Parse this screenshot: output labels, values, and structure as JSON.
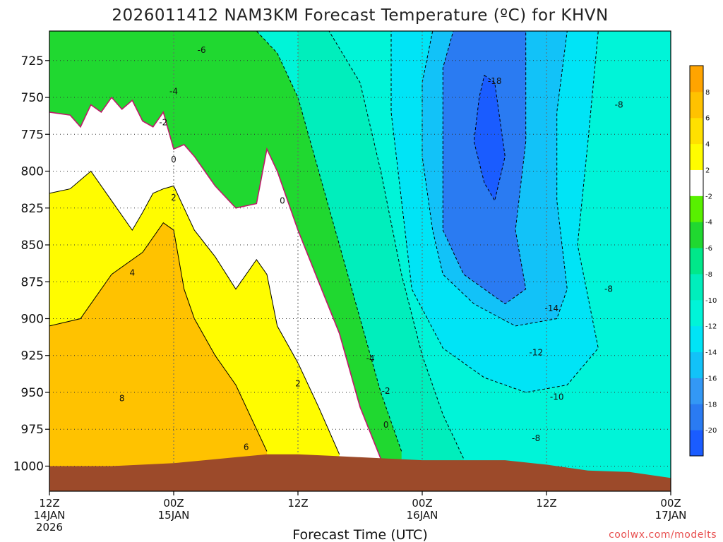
{
  "title": "2026011412 NAM3KM Forecast Temperature (ºC) for KHVN",
  "credit": "coolwx.com/modelts",
  "colors": {
    "ground": "#9c4a2a",
    "freezing_line": "#c0186a",
    "contour": "#000000"
  },
  "chart_data": {
    "type": "heatmap",
    "title": "2026011412 NAM3KM Forecast Temperature (ºC) for KHVN",
    "xlabel": "Forecast Time (UTC)",
    "ylabel": "",
    "x_range_hours": [
      0,
      60
    ],
    "y_range_hpa": [
      1017,
      705
    ],
    "y_ticks": [
      725,
      750,
      775,
      800,
      825,
      850,
      875,
      900,
      925,
      950,
      975,
      1000
    ],
    "x_ticks": [
      {
        "hour": 0,
        "time": "12Z",
        "date": "14JAN",
        "year": "2026"
      },
      {
        "hour": 12,
        "time": "00Z",
        "date": "15JAN",
        "year": ""
      },
      {
        "hour": 24,
        "time": "12Z",
        "date": "",
        "year": ""
      },
      {
        "hour": 36,
        "time": "00Z",
        "date": "16JAN",
        "year": ""
      },
      {
        "hour": 48,
        "time": "12Z",
        "date": "",
        "year": ""
      },
      {
        "hour": 60,
        "time": "00Z",
        "date": "17JAN",
        "year": ""
      }
    ],
    "grid": true,
    "contour_interval_c": 2,
    "colorbar": {
      "levels": [
        -22,
        -20,
        -18,
        -16,
        -14,
        -12,
        -10,
        -8,
        -6,
        -4,
        -2,
        2,
        4,
        6,
        8,
        10
      ],
      "labels": [
        -20,
        -18,
        -16,
        -14,
        -12,
        -10,
        -8,
        -6,
        -4,
        -2,
        2,
        4,
        6,
        8
      ],
      "colors": [
        "#1a5cff",
        "#2a7bf2",
        "#3398f5",
        "#12c2f8",
        "#00e4f6",
        "#00f4d8",
        "#00eebc",
        "#00e88a",
        "#20d830",
        "#58f000",
        "#ffffff",
        "#fffc00",
        "#ffe000",
        "#ffc200",
        "#ffa400"
      ]
    },
    "ground_surface_hpa": [
      {
        "hour": 0,
        "p": 1000
      },
      {
        "hour": 6,
        "p": 1000
      },
      {
        "hour": 9,
        "p": 999
      },
      {
        "hour": 12,
        "p": 998
      },
      {
        "hour": 15,
        "p": 996
      },
      {
        "hour": 18,
        "p": 994
      },
      {
        "hour": 21,
        "p": 992
      },
      {
        "hour": 24,
        "p": 992
      },
      {
        "hour": 27,
        "p": 993
      },
      {
        "hour": 30,
        "p": 994
      },
      {
        "hour": 33,
        "p": 995
      },
      {
        "hour": 36,
        "p": 996
      },
      {
        "hour": 40,
        "p": 996
      },
      {
        "hour": 44,
        "p": 996
      },
      {
        "hour": 48,
        "p": 999
      },
      {
        "hour": 52,
        "p": 1003
      },
      {
        "hour": 56,
        "p": 1004
      },
      {
        "hour": 60,
        "p": 1008
      }
    ],
    "contour_labels": [
      {
        "value": "-6",
        "hour": 14.7,
        "p": 718
      },
      {
        "value": "-4",
        "hour": 12.0,
        "p": 746
      },
      {
        "value": "-2",
        "hour": 11.0,
        "p": 767
      },
      {
        "value": "0",
        "hour": 12.0,
        "p": 792
      },
      {
        "value": "2",
        "hour": 12.0,
        "p": 818
      },
      {
        "value": "4",
        "hour": 8.0,
        "p": 869
      },
      {
        "value": "8",
        "hour": 7.0,
        "p": 954
      },
      {
        "value": "6",
        "hour": 19.0,
        "p": 987
      },
      {
        "value": "0",
        "hour": 22.5,
        "p": 820
      },
      {
        "value": "2",
        "hour": 24.0,
        "p": 944
      },
      {
        "value": "-4",
        "hour": 31.0,
        "p": 927
      },
      {
        "value": "-2",
        "hour": 32.5,
        "p": 949
      },
      {
        "value": "0",
        "hour": 32.5,
        "p": 972
      },
      {
        "value": "-18",
        "hour": 43.0,
        "p": 739
      },
      {
        "value": "-8",
        "hour": 55.0,
        "p": 755
      },
      {
        "value": "-8",
        "hour": 54.0,
        "p": 880
      },
      {
        "value": "-14",
        "hour": 48.5,
        "p": 893
      },
      {
        "value": "-12",
        "hour": 47.0,
        "p": 923
      },
      {
        "value": "-10",
        "hour": 49.0,
        "p": 953
      },
      {
        "value": "-8",
        "hour": 47.0,
        "p": 981
      }
    ],
    "bands": [
      {
        "name": "t_ge_6",
        "color": "#ffc200",
        "top_hpa": [
          [
            0,
            905
          ],
          [
            3,
            900
          ],
          [
            6,
            870
          ],
          [
            9,
            855
          ],
          [
            11,
            835
          ],
          [
            12,
            840
          ],
          [
            13,
            880
          ],
          [
            14,
            900
          ],
          [
            16,
            925
          ],
          [
            18,
            945
          ],
          [
            20,
            975
          ],
          [
            21,
            990
          ]
        ]
      },
      {
        "name": "t_ge_4",
        "color": "#fffc00",
        "top_hpa": [
          [
            0,
            815
          ],
          [
            2,
            812
          ],
          [
            4,
            800
          ],
          [
            6,
            820
          ],
          [
            8,
            840
          ],
          [
            9,
            828
          ],
          [
            10,
            815
          ],
          [
            11,
            812
          ],
          [
            12,
            810
          ],
          [
            14,
            840
          ],
          [
            16,
            858
          ],
          [
            18,
            880
          ],
          [
            20,
            860
          ],
          [
            21,
            870
          ],
          [
            22,
            905
          ],
          [
            24,
            930
          ],
          [
            26,
            960
          ],
          [
            28,
            992
          ]
        ]
      },
      {
        "name": "t_ge_0",
        "color": "#ffffff",
        "top_hpa": [
          [
            0,
            760
          ],
          [
            2,
            762
          ],
          [
            3,
            770
          ],
          [
            4,
            755
          ],
          [
            5,
            760
          ],
          [
            6,
            750
          ],
          [
            7,
            758
          ],
          [
            8,
            752
          ],
          [
            9,
            766
          ],
          [
            10,
            770
          ],
          [
            11,
            760
          ],
          [
            12,
            785
          ],
          [
            13,
            782
          ],
          [
            14,
            790
          ],
          [
            16,
            810
          ],
          [
            18,
            825
          ],
          [
            20,
            822
          ],
          [
            21,
            785
          ],
          [
            22,
            800
          ],
          [
            24,
            840
          ],
          [
            26,
            875
          ],
          [
            28,
            910
          ],
          [
            30,
            960
          ],
          [
            32,
            995
          ]
        ]
      },
      {
        "name": "t_ge_minus4",
        "color": "#20d830",
        "top_hpa": [
          [
            0,
            705
          ],
          [
            4,
            705
          ],
          [
            8,
            705
          ],
          [
            12,
            705
          ],
          [
            15,
            705
          ],
          [
            18,
            705
          ],
          [
            20,
            705
          ],
          [
            22,
            720
          ],
          [
            24,
            750
          ],
          [
            26,
            800
          ],
          [
            28,
            850
          ],
          [
            30,
            900
          ],
          [
            32,
            950
          ],
          [
            34,
            990
          ]
        ]
      },
      {
        "name": "t_ge_minus8",
        "color": "#00eebc",
        "top_hpa": [
          [
            24,
            705
          ],
          [
            27,
            705
          ],
          [
            30,
            740
          ],
          [
            32,
            800
          ],
          [
            34,
            870
          ],
          [
            36,
            925
          ],
          [
            38,
            965
          ],
          [
            40,
            995
          ]
        ]
      },
      {
        "name": "t_le_minus12",
        "color": "#00e4f6",
        "region": [
          [
            33,
            705
          ],
          [
            36,
            705
          ],
          [
            40,
            705
          ],
          [
            44,
            705
          ],
          [
            48,
            705
          ],
          [
            50,
            705
          ],
          [
            53,
            705
          ],
          [
            52,
            780
          ],
          [
            51,
            850
          ],
          [
            53,
            920
          ],
          [
            50,
            945
          ],
          [
            46,
            950
          ],
          [
            42,
            940
          ],
          [
            38,
            920
          ],
          [
            35,
            880
          ],
          [
            34,
            820
          ],
          [
            33,
            760
          ]
        ]
      },
      {
        "name": "t_le_minus14",
        "color": "#12c2f8",
        "region": [
          [
            37,
            705
          ],
          [
            41,
            705
          ],
          [
            45,
            705
          ],
          [
            48,
            705
          ],
          [
            50,
            705
          ],
          [
            49,
            760
          ],
          [
            49,
            820
          ],
          [
            50,
            880
          ],
          [
            49,
            900
          ],
          [
            45,
            905
          ],
          [
            41,
            890
          ],
          [
            38,
            870
          ],
          [
            37,
            840
          ],
          [
            36,
            790
          ],
          [
            36,
            740
          ]
        ]
      },
      {
        "name": "t_le_minus16",
        "color": "#2a7bf2",
        "region": [
          [
            39,
            705
          ],
          [
            42,
            705
          ],
          [
            45,
            705
          ],
          [
            46,
            705
          ],
          [
            46,
            780
          ],
          [
            45,
            840
          ],
          [
            46,
            880
          ],
          [
            44,
            890
          ],
          [
            40,
            870
          ],
          [
            38,
            840
          ],
          [
            38,
            780
          ],
          [
            38,
            730
          ]
        ]
      },
      {
        "name": "t_le_minus18",
        "color": "#1a5cff",
        "region": [
          [
            42,
            735
          ],
          [
            43,
            740
          ],
          [
            44,
            790
          ],
          [
            43,
            820
          ],
          [
            42,
            808
          ],
          [
            41,
            780
          ],
          [
            41.5,
            750
          ]
        ]
      }
    ]
  }
}
